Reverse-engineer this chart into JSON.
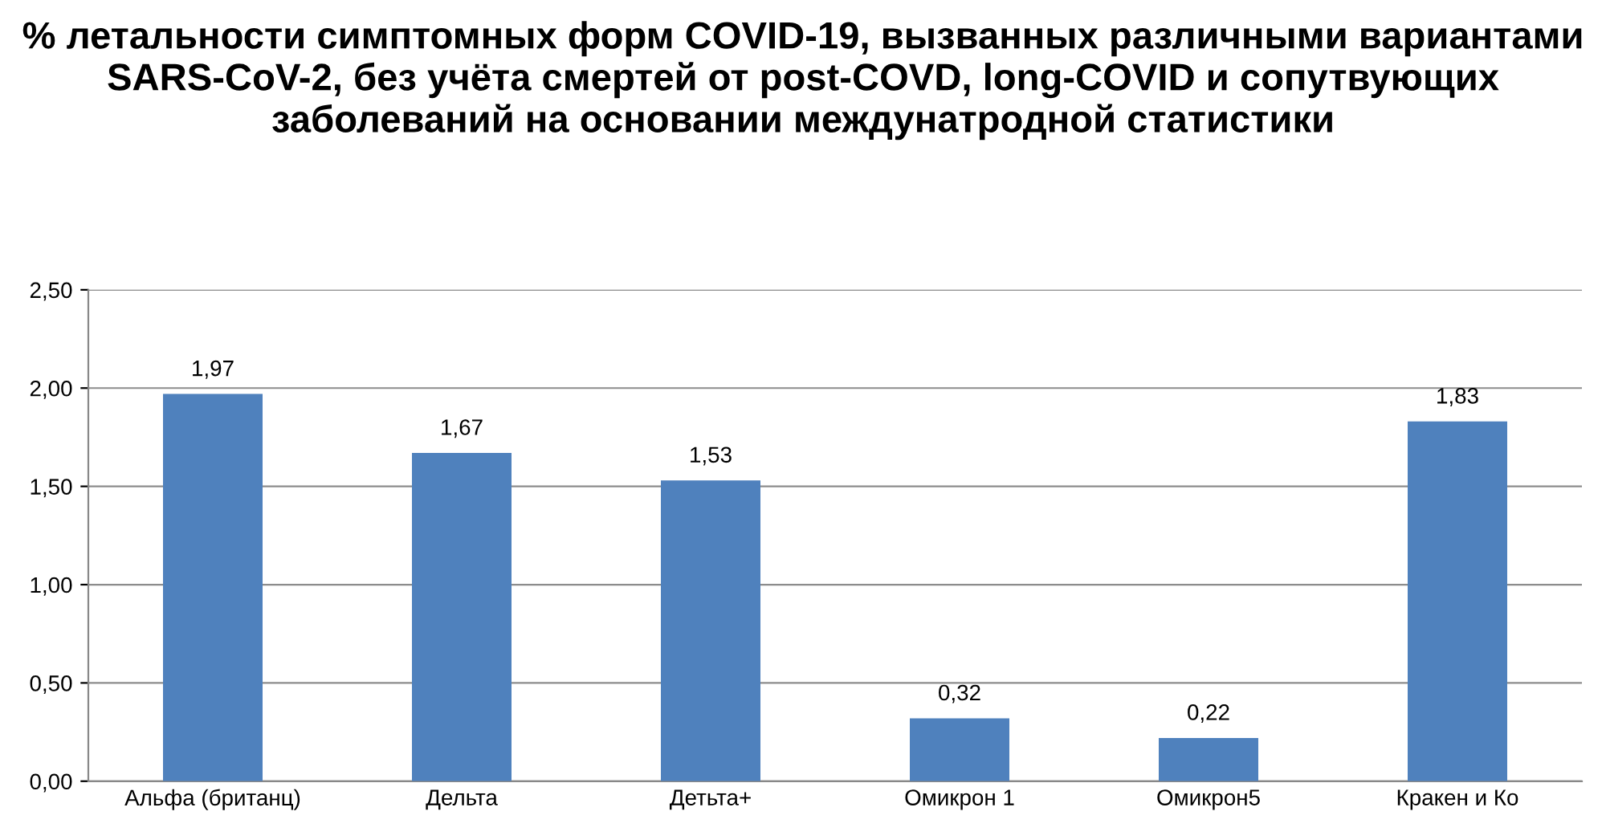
{
  "chart_data": {
    "type": "bar",
    "title": "% летальности симптомных форм COVID-19, вызванных различными вариантами SARS-CoV-2, без учёта смертей от post-COVD, long-COVID и сопутвующих заболеваний на основании междунатродной статистики",
    "categories": [
      "Альфа (британц)",
      "Дельта",
      "Детьта+",
      "Омикрон 1",
      "Омикрон5",
      "Кракен и Ко"
    ],
    "values": [
      1.97,
      1.67,
      1.53,
      0.32,
      0.22,
      1.83
    ],
    "value_labels": [
      "1,97",
      "1,67",
      "1,53",
      "0,32",
      "0,22",
      "1,83"
    ],
    "color": "#4f81bd",
    "ylim": [
      0,
      2.5
    ],
    "yticks": [
      {
        "value": 0,
        "label": "0,00"
      },
      {
        "value": 0.5,
        "label": "0,50"
      },
      {
        "value": 1,
        "label": "1,00"
      },
      {
        "value": 1.5,
        "label": "1,50"
      },
      {
        "value": 2,
        "label": "2,00"
      },
      {
        "value": 2.5,
        "label": "2,50"
      }
    ],
    "grid": "y",
    "legend": false
  }
}
